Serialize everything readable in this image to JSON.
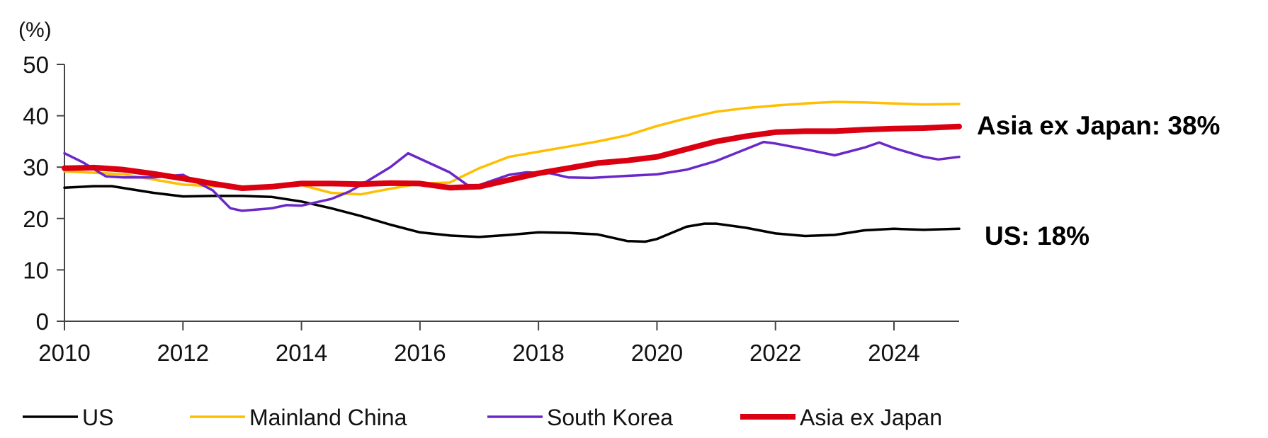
{
  "chart_data": {
    "type": "line",
    "ylabel": "(%)",
    "ylim": [
      0,
      50
    ],
    "xlim": [
      2010,
      2025.1
    ],
    "yticks": [
      "0",
      "10",
      "20",
      "30",
      "40",
      "50"
    ],
    "xticks": [
      "2010",
      "2012",
      "2014",
      "2016",
      "2018",
      "2020",
      "2022",
      "2024"
    ],
    "grid": false,
    "legend_position": "bottom",
    "series": [
      {
        "name": "US",
        "color": "#000000",
        "x": [
          2010,
          2010.5,
          2010.8,
          2011.5,
          2012,
          2012.5,
          2013,
          2013.5,
          2014,
          2014.5,
          2015,
          2015.5,
          2016,
          2016.5,
          2017,
          2017.5,
          2018,
          2018.5,
          2019,
          2019.5,
          2019.8,
          2020,
          2020.5,
          2020.8,
          2021,
          2021.5,
          2022,
          2022.5,
          2023,
          2023.5,
          2024,
          2024.5,
          2025.1
        ],
        "y": [
          26.0,
          26.3,
          26.3,
          25.0,
          24.3,
          24.4,
          24.4,
          24.2,
          23.3,
          22.0,
          20.5,
          18.8,
          17.3,
          16.7,
          16.4,
          16.8,
          17.3,
          17.2,
          16.9,
          15.6,
          15.5,
          16.0,
          18.4,
          19.0,
          19.0,
          18.2,
          17.1,
          16.6,
          16.8,
          17.7,
          18.0,
          17.8,
          18.0
        ]
      },
      {
        "name": "Mainland China",
        "color": "#FFBE00",
        "x": [
          2010,
          2011,
          2012,
          2013,
          2014,
          2014.5,
          2015,
          2015.5,
          2016,
          2016.5,
          2017,
          2017.5,
          2018,
          2018.5,
          2019,
          2019.5,
          2020,
          2020.5,
          2021,
          2021.5,
          2022,
          2022.5,
          2023,
          2023.5,
          2024,
          2024.5,
          2025.1
        ],
        "y": [
          29.2,
          28.6,
          26.6,
          26.0,
          26.5,
          25.0,
          24.7,
          25.8,
          26.8,
          27.0,
          29.8,
          32.0,
          33.0,
          34.0,
          35.0,
          36.2,
          38.0,
          39.5,
          40.8,
          41.5,
          42.0,
          42.4,
          42.7,
          42.6,
          42.4,
          42.2,
          42.3
        ]
      },
      {
        "name": "South Korea",
        "color": "#6A28C8",
        "x": [
          2010,
          2010.3,
          2010.7,
          2011,
          2011.5,
          2012,
          2012.5,
          2012.8,
          2013,
          2013.5,
          2013.75,
          2014,
          2014.5,
          2014.8,
          2015,
          2015.5,
          2015.8,
          2016.5,
          2016.8,
          2017,
          2017.5,
          2017.8,
          2018.2,
          2018.5,
          2018.9,
          2019.5,
          2020,
          2020.5,
          2021,
          2021.5,
          2021.8,
          2022,
          2022.5,
          2023,
          2023.5,
          2023.75,
          2024,
          2024.5,
          2024.75,
          2025.1
        ],
        "y": [
          32.7,
          31.0,
          28.2,
          28.0,
          28.0,
          28.5,
          25.5,
          22.0,
          21.5,
          22.0,
          22.6,
          22.5,
          23.8,
          25.2,
          26.5,
          30.0,
          32.7,
          29.0,
          26.5,
          26.5,
          28.5,
          29.0,
          28.8,
          28.0,
          27.9,
          28.3,
          28.6,
          29.5,
          31.2,
          33.5,
          34.9,
          34.6,
          33.5,
          32.3,
          33.8,
          34.8,
          33.7,
          32.0,
          31.5,
          32.0
        ]
      },
      {
        "name": "Asia ex Japan",
        "color": "#DB0011",
        "x": [
          2010,
          2010.5,
          2011,
          2011.5,
          2012,
          2012.5,
          2013,
          2013.5,
          2014,
          2014.5,
          2015,
          2015.5,
          2016,
          2016.5,
          2017,
          2017.5,
          2018,
          2018.5,
          2019,
          2019.5,
          2020,
          2020.5,
          2021,
          2021.5,
          2022,
          2022.5,
          2023,
          2023.5,
          2024,
          2024.5,
          2025.1
        ],
        "y": [
          29.8,
          29.9,
          29.5,
          28.7,
          27.8,
          26.8,
          25.9,
          26.2,
          26.8,
          26.8,
          26.7,
          26.9,
          26.8,
          26.0,
          26.2,
          27.5,
          28.8,
          29.8,
          30.8,
          31.3,
          32.0,
          33.5,
          35.0,
          36.0,
          36.8,
          37.0,
          37.0,
          37.3,
          37.5,
          37.6,
          37.9
        ]
      }
    ],
    "annotations": [
      {
        "text": "Asia ex Japan: 38%",
        "series": "Asia ex Japan"
      },
      {
        "text": "US: 18%",
        "series": "US"
      }
    ]
  }
}
